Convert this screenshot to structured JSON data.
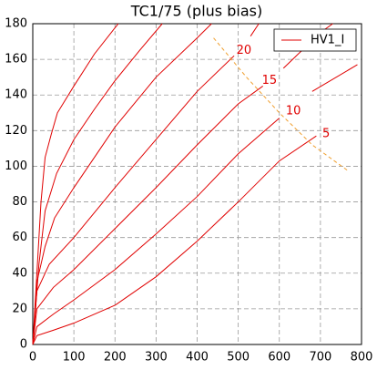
{
  "chart_data": {
    "type": "line",
    "title": "TC1/75 (plus bias)",
    "xlim": [
      0,
      800
    ],
    "ylim": [
      0,
      180
    ],
    "xticks": [
      0,
      100,
      200,
      300,
      400,
      500,
      600,
      700,
      800
    ],
    "yticks": [
      0,
      20,
      40,
      60,
      80,
      100,
      120,
      140,
      160,
      180
    ],
    "grid": true,
    "legend": "upper right",
    "series": [
      {
        "name": "HV1_I",
        "color": "#e00000",
        "x": [
          0,
          10,
          50,
          100,
          200,
          300,
          400,
          500,
          600,
          690
        ],
        "values": [
          0,
          5,
          8,
          12,
          22,
          38,
          58,
          80,
          103,
          117
        ]
      },
      {
        "color": "#e00000",
        "x": [
          0,
          10,
          50,
          100,
          200,
          300,
          400,
          500,
          600,
          640,
          680,
          790
        ],
        "values": [
          0,
          10,
          17,
          25,
          42,
          62,
          83,
          107,
          127,
          null,
          142,
          157
        ]
      },
      {
        "color": "#e00000",
        "x": [
          0,
          10,
          50,
          100,
          200,
          300,
          400,
          500,
          560,
          590,
          610,
          700,
          730
        ],
        "values": [
          0,
          20,
          32,
          42,
          65,
          88,
          112,
          135,
          145,
          null,
          155,
          175,
          180
        ]
      },
      {
        "color": "#e00000",
        "x": [
          0,
          10,
          40,
          100,
          200,
          300,
          400,
          490,
          515,
          530,
          550
        ],
        "values": [
          0,
          30,
          45,
          60,
          88,
          115,
          142,
          162,
          null,
          173,
          180
        ]
      },
      {
        "color": "#e00000",
        "x": [
          0,
          10,
          30,
          53,
          100,
          200,
          300,
          400,
          435
        ],
        "values": [
          0,
          35,
          55,
          71,
          88,
          122,
          150,
          172,
          180
        ]
      },
      {
        "color": "#e00000",
        "x": [
          0,
          15,
          30,
          58,
          100,
          150,
          200,
          260,
          315
        ],
        "values": [
          0,
          45,
          75,
          96,
          115,
          132,
          148,
          165,
          180
        ]
      },
      {
        "color": "#e00000",
        "x": [
          0,
          10,
          20,
          30,
          45,
          60,
          100,
          150,
          208
        ],
        "values": [
          0,
          40,
          80,
          105,
          118,
          130,
          145,
          163,
          180
        ]
      }
    ],
    "boundary": {
      "color": "#f0a030",
      "x": [
        440,
        520,
        600,
        680,
        770
      ],
      "values": [
        172,
        150,
        130,
        112,
        97
      ]
    },
    "annotations": [
      {
        "text": "20",
        "x": 514,
        "y": 165
      },
      {
        "text": "15",
        "x": 576,
        "y": 148
      },
      {
        "text": "10",
        "x": 634,
        "y": 131
      },
      {
        "text": "5",
        "x": 714,
        "y": 118
      }
    ]
  }
}
